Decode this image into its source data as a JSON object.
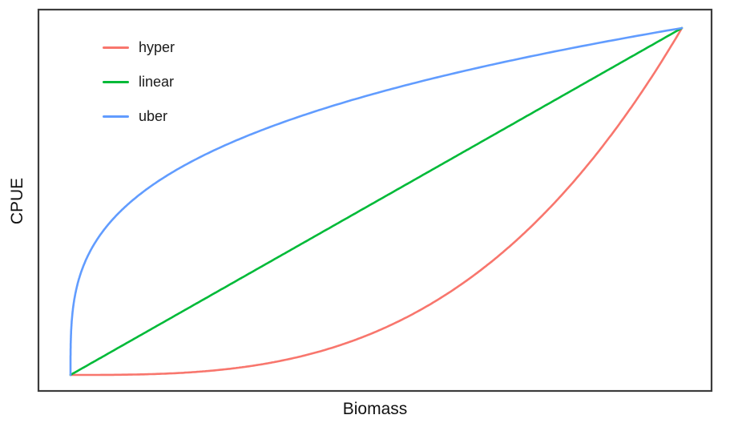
{
  "figure": {
    "background": "#ffffff",
    "border_color": "#3c3c3c",
    "text_color": "#1a1a1a"
  },
  "legend": {
    "position": "top-left",
    "entries": [
      "hyper",
      "linear",
      "uber"
    ]
  },
  "chart_data": {
    "type": "line",
    "title": "",
    "xlabel": "Biomass",
    "ylabel": "CPUE",
    "xlim": [
      0,
      1
    ],
    "ylim": [
      0,
      1
    ],
    "grid": false,
    "ticks": "none",
    "legend_position": "top-left",
    "series": [
      {
        "name": "hyper",
        "color": "#F8766D",
        "exponent": 3,
        "x": [
          0,
          0.05,
          0.1,
          0.15,
          0.2,
          0.25,
          0.3,
          0.35,
          0.4,
          0.45,
          0.5,
          0.55,
          0.6,
          0.65,
          0.7,
          0.75,
          0.8,
          0.85,
          0.9,
          0.95,
          1
        ],
        "y": [
          0,
          0.0001,
          0.001,
          0.0034,
          0.008,
          0.0156,
          0.027,
          0.0429,
          0.064,
          0.0911,
          0.125,
          0.1664,
          0.216,
          0.2746,
          0.343,
          0.4219,
          0.512,
          0.6141,
          0.729,
          0.8574,
          1
        ]
      },
      {
        "name": "linear",
        "color": "#00BA38",
        "exponent": 1,
        "x": [
          0,
          0.05,
          0.1,
          0.15,
          0.2,
          0.25,
          0.3,
          0.35,
          0.4,
          0.45,
          0.5,
          0.55,
          0.6,
          0.65,
          0.7,
          0.75,
          0.8,
          0.85,
          0.9,
          0.95,
          1
        ],
        "y": [
          0,
          0.05,
          0.1,
          0.15,
          0.2,
          0.25,
          0.3,
          0.35,
          0.4,
          0.45,
          0.5,
          0.55,
          0.6,
          0.65,
          0.7,
          0.75,
          0.8,
          0.85,
          0.9,
          0.95,
          1
        ]
      },
      {
        "name": "uber",
        "color": "#619CFF",
        "exponent": 0.3,
        "x": [
          0,
          0.05,
          0.1,
          0.15,
          0.2,
          0.25,
          0.3,
          0.35,
          0.4,
          0.45,
          0.5,
          0.55,
          0.6,
          0.65,
          0.7,
          0.75,
          0.8,
          0.85,
          0.9,
          0.95,
          1
        ],
        "y": [
          0,
          0.4072,
          0.5012,
          0.566,
          0.617,
          0.6598,
          0.6968,
          0.7298,
          0.7597,
          0.787,
          0.8123,
          0.8359,
          0.8579,
          0.8787,
          0.8985,
          0.9172,
          0.9352,
          0.9523,
          0.9687,
          0.9846,
          1
        ]
      }
    ]
  }
}
